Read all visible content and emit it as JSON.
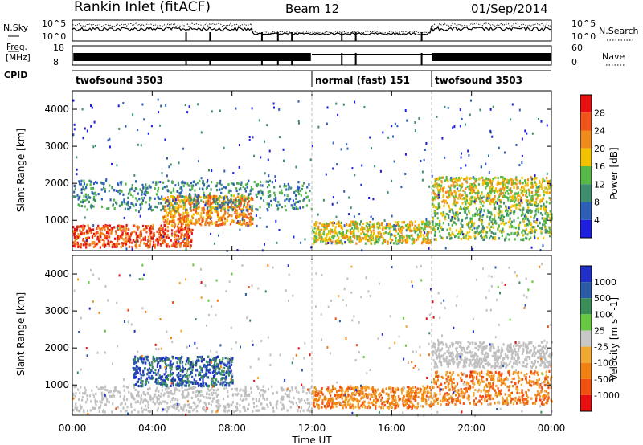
{
  "header": {
    "station": "Rankin Inlet (fitACF)",
    "beam": "Beam 12",
    "date": "01/Sep/2014"
  },
  "status_panels": {
    "nsky": {
      "label": "N.Sky",
      "y_ticks": [
        "10^5",
        "10^0"
      ],
      "right_label": "N.Search",
      "right_ticks": [
        "10^5",
        "10^0"
      ]
    },
    "freq": {
      "label_line1": "Freq.",
      "label_line2": "[MHz]",
      "y_ticks": [
        "18",
        "8"
      ],
      "right_label": "Nave",
      "right_ticks": [
        "60",
        "0"
      ]
    },
    "cpid": {
      "label": "CPID",
      "segments": [
        {
          "name": "twofsound 3503",
          "start": 0,
          "end": 12
        },
        {
          "name": "normal (fast) 151",
          "start": 12,
          "end": 18
        },
        {
          "name": "twofsound 3503",
          "start": 18,
          "end": 24
        }
      ]
    }
  },
  "chart_data": [
    {
      "type": "heatmap",
      "title": "",
      "xlabel": "",
      "ylabel": "Slant Range [km]",
      "x_range_hours_ut": [
        0,
        24
      ],
      "ylim": [
        180,
        4500
      ],
      "y_ticks": [
        1000,
        2000,
        3000,
        4000
      ],
      "colorbar": {
        "label": "Power [dB]",
        "tick_labels": [
          "4",
          "8",
          "12",
          "16",
          "20",
          "24",
          "28"
        ],
        "colors": [
          "#1f1fe0",
          "#2f60b8",
          "#3f8f6e",
          "#55b948",
          "#f2c200",
          "#f08a18",
          "#f05418",
          "#e81010"
        ]
      },
      "scatter_regions": [
        {
          "start": 0,
          "end": 6,
          "range": [
            300,
            900
          ],
          "level": "28"
        },
        {
          "start": 4.5,
          "end": 9,
          "range": [
            900,
            1700
          ],
          "level": "24"
        },
        {
          "start": 0,
          "end": 12,
          "range": [
            1300,
            2100
          ],
          "level": "12"
        },
        {
          "start": 12,
          "end": 18,
          "range": [
            400,
            1000
          ],
          "level": "20"
        },
        {
          "start": 18,
          "end": 24,
          "range": [
            500,
            1500
          ],
          "level": "16"
        },
        {
          "start": 18,
          "end": 24,
          "range": [
            1500,
            2200
          ],
          "level": "20"
        }
      ]
    },
    {
      "type": "heatmap",
      "title": "",
      "xlabel": "Time UT",
      "ylabel": "Slant Range [km]",
      "x_range_hours_ut": [
        0,
        24
      ],
      "ylim": [
        180,
        4500
      ],
      "y_ticks": [
        1000,
        2000,
        3000,
        4000
      ],
      "x_tick_labels": [
        "00:00",
        "04:00",
        "08:00",
        "12:00",
        "16:00",
        "20:00",
        "00:00"
      ],
      "colorbar": {
        "label": "Velocity [m s^-1]",
        "tick_labels": [
          "1000",
          "500",
          "100",
          "25",
          "-25",
          "-100",
          "-500",
          "-1000"
        ],
        "colors": [
          "#2030c8",
          "#2c5ca8",
          "#3a8e5a",
          "#66c840",
          "#c8c8c8",
          "#f0a830",
          "#f08010",
          "#f05010",
          "#e81010"
        ]
      },
      "scatter_regions": [
        {
          "start": 0,
          "end": 12,
          "range": [
            300,
            1000
          ],
          "level": "ground"
        },
        {
          "start": 3,
          "end": 8,
          "range": [
            1000,
            1800
          ],
          "level": "500"
        },
        {
          "start": 12,
          "end": 18,
          "range": [
            400,
            1000
          ],
          "level": "-500"
        },
        {
          "start": 18,
          "end": 24,
          "range": [
            500,
            1400
          ],
          "level": "-500"
        },
        {
          "start": 18,
          "end": 24,
          "range": [
            1500,
            2200
          ],
          "level": "ground"
        }
      ]
    }
  ]
}
